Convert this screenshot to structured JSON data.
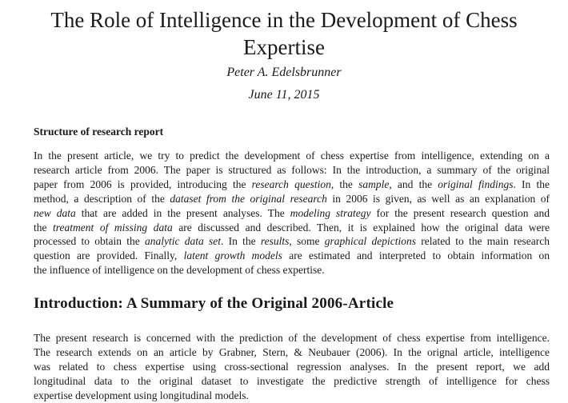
{
  "paper": {
    "title": "The Role of Intelligence in the Development of Chess Expertise",
    "author": "Peter A. Edelsbrunner",
    "date": "June 11, 2015",
    "structure_heading": "Structure of research report",
    "structure_lines": [
      [
        "In the present article, we try to predict the development of chess expertise from intelligence, extending on a"
      ],
      [
        "research article from 2006. The paper is structured as follows: In the introduction, a summary of the original"
      ],
      [
        "paper from 2006 is provided, introducing the ",
        {
          "i": "research question"
        },
        ", the ",
        {
          "i": "sample"
        },
        ", and the ",
        {
          "i": "original findings"
        },
        ". In the"
      ],
      [
        "method, a description of the ",
        {
          "i": "dataset from the original research"
        },
        " in 2006 is given, as well as an explanation of"
      ],
      [
        {
          "i": "new data"
        },
        " that are added in the present analyses. The ",
        {
          "i": "modeling strategy"
        },
        " for the present research question and"
      ],
      [
        "the ",
        {
          "i": "treatment of missing data"
        },
        " are discussed and described. Then, it is explained how the original data were"
      ],
      [
        "processed to obtain the ",
        {
          "i": "analytic data set"
        },
        ". In the ",
        {
          "i": "results"
        },
        ", some ",
        {
          "i": "graphical depictions"
        },
        " related to the main research"
      ],
      [
        "question are provided. Finally, ",
        {
          "i": "latent growth models"
        },
        " are estimated and interpreted to obtain information on"
      ],
      [
        "the influence of intelligence on the development of chess expertise."
      ]
    ],
    "section_heading": "Introduction: A Summary of the Original 2006-Article",
    "intro_lines": [
      [
        "The present research is concerned with the prediction of the development of chess expertise from intelligence."
      ],
      [
        "The research extends on an article by Grabner, Stern, & Neubauer (2006). In the orignal article, intelligence"
      ],
      [
        "was related to chess expertise using cross-sectional regression analyses. In the present report, we add"
      ],
      [
        "longitudinal data to the original dataset to investigate the predictive strength of intelligence for chess"
      ],
      [
        "expertise development using longitudinal models."
      ]
    ]
  }
}
